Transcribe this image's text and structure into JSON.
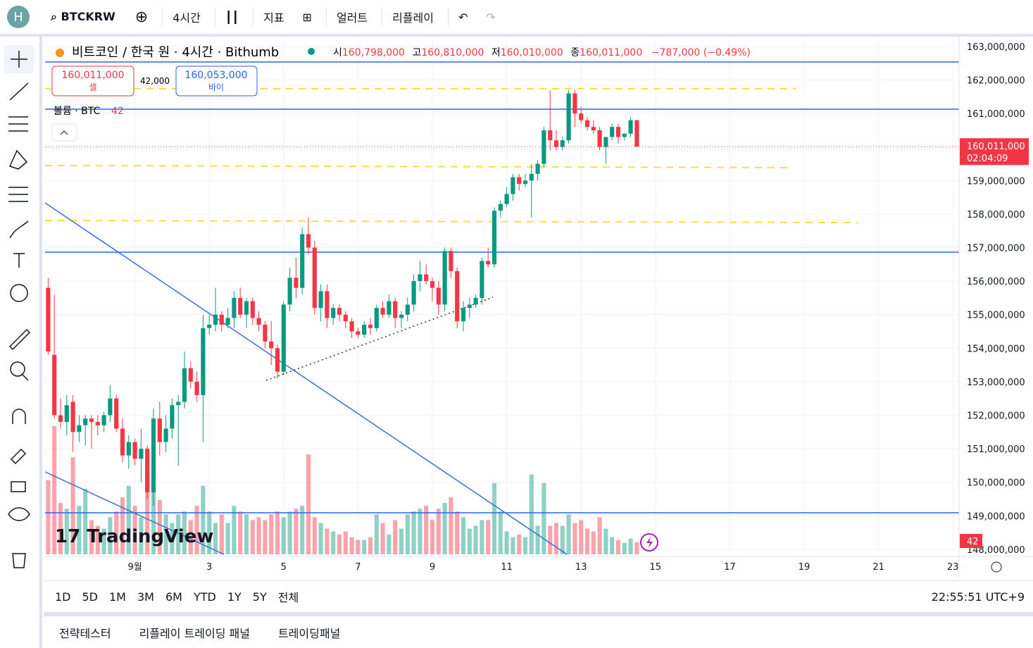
{
  "toolbar": {
    "avatar": "H",
    "symbol": "BTCKRW",
    "interval": "4시간",
    "indicators": "지표",
    "alert": "얼러트",
    "replay": "리플레이"
  },
  "legend": {
    "title": "비트코인 / 한국 원 · 4시간 · Bithumb",
    "open_label": "시",
    "open": "160,798,000",
    "high_label": "고",
    "high": "160,810,000",
    "low_label": "저",
    "low": "160,010,000",
    "close_label": "종",
    "close": "160,011,000",
    "change": "−787,000 (−0.49%)"
  },
  "order": {
    "sell_price": "160,011,000",
    "sell": "셀",
    "spread": "42,000",
    "buy_price": "160,053,000",
    "buy": "바이"
  },
  "volume_legend": {
    "label": "볼륨 · BTC",
    "value": "42"
  },
  "watermark": "TradingView",
  "chart_data": {
    "type": "candlestick",
    "ylim": [
      147850000,
      163210000
    ],
    "xlim": [
      -0.5,
      147
    ],
    "yticks": [
      {
        "value": 163000000,
        "label": "163,000,000"
      },
      {
        "value": 162000000,
        "label": "162,000,000"
      },
      {
        "value": 161000000,
        "label": "161,000,000"
      },
      {
        "value": 159000000,
        "label": "159,000,000"
      },
      {
        "value": 158000000,
        "label": "158,000,000"
      },
      {
        "value": 157000000,
        "label": "157,000,000"
      },
      {
        "value": 156000000,
        "label": "156,000,000"
      },
      {
        "value": 155000000,
        "label": "155,000,000"
      },
      {
        "value": 154000000,
        "label": "154,000,000"
      },
      {
        "value": 153000000,
        "label": "153,000,000"
      },
      {
        "value": 152000000,
        "label": "152,000,000"
      },
      {
        "value": 151000000,
        "label": "151,000,000"
      },
      {
        "value": 150000000,
        "label": "150,000,000"
      },
      {
        "value": 149000000,
        "label": "149,000,000"
      },
      {
        "value": 148000000,
        "label": "148,000,000"
      }
    ],
    "xticks": [
      {
        "value": 14,
        "label": "9월"
      },
      {
        "value": 26,
        "label": "3"
      },
      {
        "value": 38,
        "label": "5"
      },
      {
        "value": 50,
        "label": "7"
      },
      {
        "value": 62,
        "label": "9"
      },
      {
        "value": 74,
        "label": "11"
      },
      {
        "value": 86,
        "label": "13"
      },
      {
        "value": 98,
        "label": "15"
      },
      {
        "value": 110,
        "label": "17"
      },
      {
        "value": 122,
        "label": "19"
      },
      {
        "value": 134,
        "label": "21"
      },
      {
        "value": 146,
        "label": "23"
      }
    ],
    "up_color": "#089981",
    "down_color": "#f23645",
    "grid": true,
    "open": [
      155800000,
      153800000,
      152000000,
      151800000,
      152400000,
      151500000,
      151700000,
      151900000,
      151800000,
      151700000,
      152000000,
      152500000,
      151600000,
      150800000,
      151200000,
      150700000,
      151000000,
      149700000,
      151900000,
      151200000,
      151600000,
      152300000,
      152400000,
      153400000,
      153000000,
      152600000,
      154600000,
      154700000,
      155000000,
      154700000,
      154900000,
      155500000,
      155000000,
      155400000,
      154900000,
      154700000,
      154200000,
      154000000,
      153300000,
      155300000,
      156100000,
      155800000,
      157400000,
      157000000,
      155200000,
      155700000,
      154900000,
      155200000,
      155000000,
      154800000,
      154500000,
      154400000,
      154700000,
      154600000,
      155200000,
      155000000,
      155400000,
      154900000,
      155000000,
      155300000,
      156000000,
      156200000,
      156000000,
      155800000,
      155300000,
      156900000,
      156300000,
      154800000,
      155200000,
      155300000,
      155500000,
      156600000,
      156500000,
      158100000,
      158300000,
      158600000,
      159100000,
      158900000,
      159000000,
      159200000,
      159500000,
      160500000,
      160200000,
      160000000,
      160200000,
      161600000,
      161000000,
      160800000,
      160600000,
      160500000,
      160000000,
      160300000,
      160600000,
      160300000,
      160400000,
      160798000
    ],
    "high": [
      156100000,
      155600000,
      152500000,
      152600000,
      152600000,
      152000000,
      152000000,
      152000000,
      152000000,
      152100000,
      152900000,
      152600000,
      151900000,
      151400000,
      151300000,
      151600000,
      151100000,
      152200000,
      152400000,
      152000000,
      152500000,
      152600000,
      153900000,
      153600000,
      153300000,
      155000000,
      155000000,
      155800000,
      155100000,
      155200000,
      155700000,
      155800000,
      155500000,
      155500000,
      155100000,
      154800000,
      154800000,
      154100000,
      155400000,
      156400000,
      156700000,
      157600000,
      157900000,
      157200000,
      155900000,
      155900000,
      155300000,
      155300000,
      155100000,
      154900000,
      154600000,
      154800000,
      154900000,
      155300000,
      155400000,
      155600000,
      155500000,
      155100000,
      155500000,
      156200000,
      156600000,
      156500000,
      156100000,
      156000000,
      157000000,
      157000000,
      156400000,
      155400000,
      155500000,
      155600000,
      156700000,
      157000000,
      158200000,
      158400000,
      158800000,
      159200000,
      159200000,
      159200000,
      159500000,
      159600000,
      160600000,
      161700000,
      160500000,
      160300000,
      161700000,
      161700000,
      161200000,
      160900000,
      160800000,
      160600000,
      160300000,
      160700000,
      160700000,
      160400000,
      160900000,
      160810000
    ],
    "low": [
      153800000,
      151900000,
      151600000,
      151400000,
      150900000,
      151200000,
      151100000,
      151000000,
      151400000,
      151500000,
      151800000,
      151500000,
      150600000,
      150400000,
      150500000,
      150000000,
      149500000,
      149300000,
      150800000,
      150900000,
      151300000,
      150500000,
      152200000,
      152800000,
      152400000,
      151200000,
      154400000,
      154500000,
      154500000,
      154600000,
      154600000,
      154900000,
      154600000,
      154700000,
      154500000,
      154000000,
      153500000,
      153100000,
      153200000,
      155100000,
      155500000,
      155600000,
      156800000,
      155000000,
      154800000,
      154600000,
      154700000,
      154800000,
      154600000,
      154300000,
      154300000,
      154300000,
      154400000,
      154500000,
      154900000,
      154900000,
      154600000,
      154600000,
      154800000,
      155100000,
      155700000,
      155900000,
      155400000,
      155000000,
      155100000,
      156100000,
      154600000,
      154500000,
      154900000,
      155200000,
      155300000,
      156400000,
      156400000,
      157900000,
      158200000,
      158400000,
      158700000,
      158800000,
      157900000,
      159000000,
      159400000,
      159900000,
      159900000,
      159900000,
      160100000,
      160600000,
      160700000,
      160500000,
      160400000,
      159900000,
      159500000,
      160200000,
      160100000,
      160200000,
      160300000,
      160010000
    ],
    "close": [
      153900000,
      152000000,
      151800000,
      152300000,
      151500000,
      151700000,
      151900000,
      151800000,
      151700000,
      152000000,
      152500000,
      151600000,
      150800000,
      151200000,
      150700000,
      151000000,
      149700000,
      151900000,
      151200000,
      151600000,
      152300000,
      152400000,
      153400000,
      153000000,
      152600000,
      154600000,
      154700000,
      155000000,
      154700000,
      154900000,
      155500000,
      155000000,
      155400000,
      154900000,
      154700000,
      154200000,
      154000000,
      153300000,
      155300000,
      156100000,
      155800000,
      157400000,
      157000000,
      155200000,
      155700000,
      154900000,
      155200000,
      155000000,
      154800000,
      154500000,
      154400000,
      154700000,
      154600000,
      155200000,
      155000000,
      155400000,
      154900000,
      155000000,
      155300000,
      156000000,
      156200000,
      156000000,
      155800000,
      155300000,
      156900000,
      156300000,
      154800000,
      155200000,
      155300000,
      155500000,
      156600000,
      156500000,
      158100000,
      158300000,
      158600000,
      159100000,
      158900000,
      159000000,
      159200000,
      159500000,
      160500000,
      160200000,
      160000000,
      160200000,
      161600000,
      161000000,
      160800000,
      160600000,
      160500000,
      160000000,
      160300000,
      160600000,
      160300000,
      160400000,
      160800000,
      160011000
    ],
    "volume": [
      260,
      450,
      180,
      160,
      340,
      170,
      230,
      120,
      100,
      90,
      130,
      150,
      200,
      240,
      170,
      130,
      330,
      300,
      190,
      140,
      110,
      140,
      150,
      120,
      170,
      240,
      150,
      110,
      140,
      110,
      170,
      150,
      140,
      120,
      130,
      120,
      140,
      150,
      130,
      150,
      160,
      170,
      350,
      130,
      110,
      90,
      80,
      70,
      80,
      60,
      50,
      50,
      60,
      140,
      110,
      70,
      120,
      90,
      140,
      150,
      160,
      170,
      120,
      160,
      180,
      200,
      150,
      130,
      90,
      100,
      120,
      120,
      250,
      150,
      80,
      60,
      70,
      60,
      280,
      100,
      250,
      100,
      110,
      100,
      140,
      110,
      120,
      90,
      80,
      130,
      90,
      60,
      50,
      40,
      55,
      42
    ],
    "last_price_label": "160,011,000",
    "countdown": "02:04:09",
    "last_volume_label": "42"
  },
  "range_bar": {
    "ranges": [
      "1D",
      "5D",
      "1M",
      "3M",
      "6M",
      "YTD",
      "1Y",
      "5Y",
      "전체"
    ],
    "clock": "22:55:51 UTC+9"
  },
  "bottom_panel": {
    "tabs": [
      "전략테스터",
      "리플레이 트레이딩 패널",
      "트레이딩패널"
    ]
  }
}
